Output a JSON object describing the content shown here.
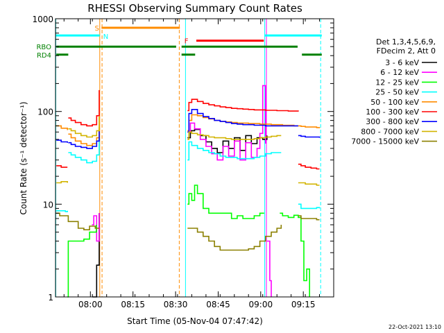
{
  "chart_data": {
    "type": "line",
    "title": "RHESSI Observing Summary Count Rates",
    "xlabel": "Start Time (05-Nov-04 07:47:42)",
    "ylabel": "Count Rate (s⁻¹ detector⁻¹)",
    "x_unit": "minutes after 07:47:42",
    "xlim": [
      0,
      98
    ],
    "ylim": [
      1,
      1000
    ],
    "yscale": "log",
    "x_ticks": [
      {
        "x": 12.3,
        "label": "08:00"
      },
      {
        "x": 27.3,
        "label": "08:15"
      },
      {
        "x": 42.3,
        "label": "08:30"
      },
      {
        "x": 57.3,
        "label": "08:45"
      },
      {
        "x": 72.3,
        "label": "09:00"
      },
      {
        "x": 87.3,
        "label": "09:15"
      }
    ],
    "y_ticks": [
      {
        "y": 1,
        "label": "1"
      },
      {
        "y": 10,
        "label": "10"
      },
      {
        "y": 100,
        "label": "100"
      },
      {
        "y": 1000,
        "label": "1000"
      }
    ],
    "legend_header": [
      "Det 1,3,4,5,6,9,",
      "FDecim 2, Att 0"
    ],
    "legend_position": "right",
    "timestamp": "22-Oct-2021 13:10",
    "series": [
      {
        "name": "3 - 6 keV",
        "color": "#000000",
        "segments": [
          {
            "x": [
              13.0,
              14.5,
              15.4
            ],
            "y": [
              1.0,
              2.2,
              8
            ]
          },
          {
            "x": [
              46.5,
              47.5,
              49,
              51,
              53,
              55,
              57,
              59,
              61,
              63,
              65,
              67,
              69,
              71,
              73,
              74.5
            ],
            "y": [
              52,
              62,
              64,
              55,
              47,
              40,
              36,
              48,
              40,
              52,
              38,
              55,
              45,
              52,
              50,
              55
            ]
          }
        ]
      },
      {
        "name": "6 - 12 keV",
        "color": "#ff00ff",
        "segments": [
          {
            "x": [
              12.8,
              13.5,
              14.5,
              15.4
            ],
            "y": [
              6,
              7.5,
              4,
              8
            ]
          },
          {
            "x": [
              46.5,
              47.5,
              49,
              51,
              53,
              55,
              57,
              59,
              61,
              63,
              65,
              67,
              69,
              71,
              72,
              73,
              74
            ],
            "y": [
              60,
              75,
              65,
              50,
              42,
              35,
              30,
              42,
              33,
              48,
              30,
              46,
              32,
              40,
              58,
              190,
              45
            ]
          },
          {
            "x": [
              74.5,
              75.5,
              76
            ],
            "y": [
              4,
              1.5,
              1
            ]
          }
        ]
      },
      {
        "name": "12 - 25 keV",
        "color": "#00ff00",
        "segments": [
          {
            "x": [
              4.2,
              4.5,
              5.5,
              8,
              10,
              12,
              13.5,
              14.4
            ],
            "y": [
              1,
              4,
              4,
              4,
              4.2,
              5,
              5,
              6
            ]
          },
          {
            "x": [
              46.5,
              47,
              48,
              49,
              50,
              52,
              54,
              56,
              58,
              60,
              62,
              64,
              66,
              68,
              70,
              72,
              73.5
            ],
            "y": [
              10,
              13,
              11,
              16,
              13,
              9,
              8,
              8,
              8,
              8,
              7,
              7.5,
              7,
              7,
              7.5,
              8,
              8
            ]
          },
          {
            "x": [
              79,
              80,
              82,
              84,
              85.5,
              86.5,
              87.5,
              88.5,
              89.5
            ],
            "y": [
              8,
              7.5,
              7.2,
              7.6,
              7.2,
              4,
              1.5,
              2,
              1
            ]
          }
        ]
      },
      {
        "name": "25 - 50 keV",
        "color": "#00ffff",
        "segments": [
          {
            "x": [
              0.3,
              3.5,
              4.2
            ],
            "y": [
              8.5,
              8.3,
              8.5
            ]
          },
          {
            "x": [
              4.5,
              5.5,
              7,
              9,
              11,
              13,
              14.5,
              15.4
            ],
            "y": [
              36,
              34,
              32,
              30,
              28,
              29,
              34,
              55
            ]
          },
          {
            "x": [
              46.5,
              47,
              48,
              50,
              52,
              54,
              56,
              58,
              60,
              62,
              64,
              66,
              68,
              70,
              72,
              74,
              76,
              78,
              79.5
            ],
            "y": [
              30,
              47,
              43,
              40,
              38,
              36,
              35,
              33,
              32,
              32,
              31,
              31,
              31,
              32,
              33,
              35,
              36,
              36,
              36
            ]
          },
          {
            "x": [
              85.5,
              86.5,
              88,
              90,
              92,
              93
            ],
            "y": [
              10,
              9,
              9,
              9,
              9.2,
              9
            ]
          }
        ]
      },
      {
        "name": "50 - 100 keV",
        "color": "#ff8c00",
        "segments": [
          {
            "x": [
              0.3,
              2,
              4.2
            ],
            "y": [
              70,
              66,
              63
            ]
          },
          {
            "x": [
              4.5,
              5.5,
              7,
              9,
              11,
              13,
              14.5,
              15.4
            ],
            "y": [
              57,
              52,
              48,
              45,
              43,
              45,
              52,
              68
            ]
          },
          {
            "x": [
              46.5,
              47,
              48,
              50,
              52,
              54,
              56,
              58,
              60,
              62,
              64,
              66,
              68,
              70,
              72,
              74,
              76,
              78,
              80,
              82,
              84,
              85.5,
              86.5,
              88,
              90,
              92,
              93
            ],
            "y": [
              62,
              80,
              92,
              90,
              86,
              83,
              80,
              78,
              77,
              76,
              75,
              75,
              74,
              74,
              73,
              73,
              72,
              72,
              71,
              71,
              70,
              70,
              69,
              68,
              68,
              67,
              66
            ]
          }
        ]
      },
      {
        "name": "100 - 300 keV",
        "color": "#ff0000",
        "segments": [
          {
            "x": [
              0.3,
              2,
              4.2
            ],
            "y": [
              26,
              25,
              25
            ]
          },
          {
            "x": [
              4.5,
              5.5,
              7,
              9,
              11,
              13,
              14.5,
              15.4
            ],
            "y": [
              85,
              80,
              76,
              72,
              70,
              72,
              90,
              170
            ]
          },
          {
            "x": [
              46.5,
              47,
              48,
              50,
              52,
              54,
              56,
              58,
              60,
              62,
              64,
              66,
              68,
              70,
              72,
              74,
              76,
              78,
              80,
              82,
              84,
              85.5
            ],
            "y": [
              102,
              125,
              135,
              128,
              122,
              118,
              115,
              112,
              110,
              108,
              107,
              106,
              105,
              104,
              104,
              103,
              103,
              102,
              102,
              101,
              101,
              100
            ]
          },
          {
            "x": [
              85.5,
              86.5,
              88,
              90,
              92,
              93
            ],
            "y": [
              27,
              26,
              25,
              24.5,
              24,
              24
            ]
          }
        ]
      },
      {
        "name": "300 - 800 keV",
        "color": "#0000ff",
        "segments": [
          {
            "x": [
              0.3,
              2,
              4.2
            ],
            "y": [
              49,
              47,
              46
            ]
          },
          {
            "x": [
              4.5,
              5.5,
              7,
              9,
              11,
              13,
              14.5,
              15.4
            ],
            "y": [
              46,
              44,
              42,
              41,
              40,
              42,
              48,
              62
            ]
          },
          {
            "x": [
              46.5,
              47,
              48,
              50,
              52,
              54,
              56,
              58,
              60,
              62,
              64,
              66,
              68,
              70,
              72,
              74,
              76,
              78,
              80,
              82,
              84,
              85.5
            ],
            "y": [
              60,
              95,
              105,
              95,
              88,
              84,
              80,
              78,
              76,
              74,
              73,
              72,
              72,
              71,
              71,
              70,
              70,
              70,
              70,
              70,
              70,
              70
            ]
          },
          {
            "x": [
              85.5,
              86.5,
              88,
              90,
              92,
              93
            ],
            "y": [
              55,
              54,
              53,
              53,
              53,
              52
            ]
          }
        ]
      },
      {
        "name": "800 - 7000 keV",
        "color": "#d2b400",
        "segments": [
          {
            "x": [
              0.3,
              2,
              4.2
            ],
            "y": [
              17,
              17.5,
              17
            ]
          },
          {
            "x": [
              4.5,
              5.5,
              7,
              9,
              11,
              13,
              14.5,
              15.4
            ],
            "y": [
              65,
              62,
              58,
              55,
              53,
              55,
              62,
              88
            ]
          },
          {
            "x": [
              46.5,
              47,
              48,
              50,
              52,
              54,
              56,
              58,
              60,
              62,
              64,
              66,
              68,
              70,
              72,
              74,
              76,
              78,
              79.5
            ],
            "y": [
              50,
              60,
              58,
              56,
              55,
              53,
              52,
              52,
              51,
              50,
              50,
              50,
              50,
              51,
              52,
              53,
              54,
              55,
              55
            ]
          },
          {
            "x": [
              85.5,
              86.5,
              88,
              90,
              92,
              93
            ],
            "y": [
              17,
              17,
              16.5,
              16.5,
              16,
              16
            ]
          }
        ]
      },
      {
        "name": "7000 - 15000 keV",
        "color": "#8b8000",
        "segments": [
          {
            "x": [
              0.3,
              1.5,
              3,
              4.5,
              6,
              8,
              10,
              12,
              14,
              15.4
            ],
            "y": [
              8,
              7.5,
              7.5,
              6.5,
              6.5,
              5.5,
              5.3,
              5.8,
              5.5,
              5.5
            ]
          },
          {
            "x": [
              46.5,
              48,
              50,
              52,
              54,
              56,
              58,
              60,
              62,
              64,
              66,
              68,
              70,
              72,
              74,
              76,
              78,
              79.5
            ],
            "y": [
              5.5,
              5.5,
              5,
              4.5,
              4,
              3.5,
              3.2,
              3.2,
              3.2,
              3.2,
              3.2,
              3.3,
              3.5,
              4,
              4.5,
              5,
              5.5,
              6
            ]
          },
          {
            "x": [
              85.5,
              86.5,
              88,
              90,
              92,
              93
            ],
            "y": [
              7.5,
              7,
              7,
              7,
              6.8,
              6.8
            ]
          }
        ]
      }
    ],
    "flags": [
      {
        "label": "",
        "color": "#00ffff",
        "level": 660,
        "segments": [
          [
            0,
            15.6
          ],
          [
            73.6,
            93.8
          ]
        ]
      },
      {
        "label": "S",
        "color": "#ff8c00",
        "level": 800,
        "segments": [
          [
            16.2,
            43.8
          ]
        ],
        "marker_x": 13.8
      },
      {
        "label": "N",
        "color": "#00ffff",
        "level": 650,
        "segments": [],
        "marker_x": 16.8
      },
      {
        "label": "F",
        "color": "#ff0000",
        "level": 580,
        "segments": [
          [
            49.6,
            73.4
          ]
        ],
        "marker_x": 45.4
      },
      {
        "label": "RBO",
        "color": "#008000",
        "level": 500,
        "segments": [
          [
            0.3,
            42.5
          ],
          [
            44.4,
            85.3
          ]
        ]
      },
      {
        "label": "RD4",
        "color": "#008000",
        "level": 410,
        "segments": [
          [
            0.3,
            4.5
          ],
          [
            44.4,
            49.2
          ],
          [
            86.8,
            93.8
          ]
        ]
      }
    ],
    "verticals": [
      {
        "x": 0.1,
        "color": "#00ffff",
        "dash": false
      },
      {
        "x": 15.6,
        "color": "#ff8c00",
        "dash": false
      },
      {
        "x": 16.4,
        "color": "#ff8c00",
        "dash": true
      },
      {
        "x": 43.6,
        "color": "#ff8c00",
        "dash": true
      },
      {
        "x": 45.8,
        "color": "#00ffff",
        "dash": false
      },
      {
        "x": 73.7,
        "color": "#00ffff",
        "dash": false
      },
      {
        "x": 74.3,
        "color": "#ff00ff",
        "dash": false
      },
      {
        "x": 93.4,
        "color": "#00ffff",
        "dash": true
      }
    ]
  }
}
